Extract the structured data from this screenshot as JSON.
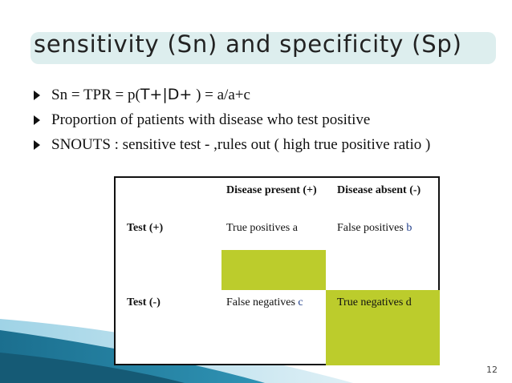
{
  "slide": {
    "title": "sensitivity (Sn) and specificity (Sp)",
    "page_number": "12"
  },
  "bullets": [
    {
      "pre": "Sn = TPR = p(",
      "sym": "T+|D+",
      "post": " ) = a/a+c"
    },
    {
      "text": "Proportion of patients with disease who test positive"
    },
    {
      "text": "SNOUTS : sensitive test  -  ,rules out ( high true positive ratio )"
    }
  ],
  "table": {
    "headers": [
      "Disease present (+)",
      "Disease absent (-)"
    ],
    "rows": [
      {
        "label": "Test  (+)",
        "cells": [
          {
            "text": "True positives  a",
            "letter": ""
          },
          {
            "text": "False positives ",
            "letter": "b"
          }
        ]
      },
      {
        "label": "Test  (-)",
        "cells": [
          {
            "text": "False negatives ",
            "letter": "c"
          },
          {
            "text": "True negatives d",
            "letter": ""
          }
        ]
      }
    ]
  },
  "colors": {
    "title_bg": "#ddeeee",
    "highlight_cell": "#bccc2c",
    "swoosh_dark": "#1b6f8f",
    "swoosh_light": "#9fd3e6"
  }
}
